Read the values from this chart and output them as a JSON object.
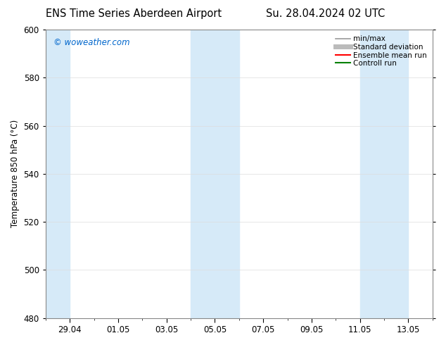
{
  "title_left": "ENS Time Series Aberdeen Airport",
  "title_right": "Su. 28.04.2024 02 UTC",
  "ylabel": "Temperature 850 hPa (°C)",
  "ylim": [
    480,
    600
  ],
  "yticks": [
    480,
    500,
    520,
    540,
    560,
    580,
    600
  ],
  "xtick_labels": [
    "29.04",
    "01.05",
    "03.05",
    "05.05",
    "07.05",
    "09.05",
    "11.05",
    "13.05"
  ],
  "xtick_dates": [
    "2024-04-29",
    "2024-05-01",
    "2024-05-03",
    "2024-05-05",
    "2024-05-07",
    "2024-05-09",
    "2024-05-11",
    "2024-05-13"
  ],
  "watermark": "© woweather.com",
  "watermark_color": "#0066cc",
  "bg_color": "#ffffff",
  "plot_bg_color": "#ffffff",
  "shaded_color": "#d6eaf8",
  "shaded_bands": [
    {
      "start": "2024-04-28",
      "end": "2024-04-29"
    },
    {
      "start": "2024-05-04",
      "end": "2024-05-06"
    },
    {
      "start": "2024-05-11",
      "end": "2024-05-12"
    },
    {
      "start": "2024-05-12",
      "end": "2024-05-14"
    }
  ],
  "legend_entries": [
    {
      "label": "min/max",
      "color": "#999999",
      "lw": 1.2
    },
    {
      "label": "Standard deviation",
      "color": "#bbbbbb",
      "lw": 5
    },
    {
      "label": "Ensemble mean run",
      "color": "#ff0000",
      "lw": 1.5
    },
    {
      "label": "Controll run",
      "color": "#008000",
      "lw": 1.5
    }
  ],
  "grid_color": "#dddddd",
  "font_size": 8.5,
  "title_font_size": 10.5,
  "start_date": "2024-04-28",
  "end_date": "2024-05-14"
}
